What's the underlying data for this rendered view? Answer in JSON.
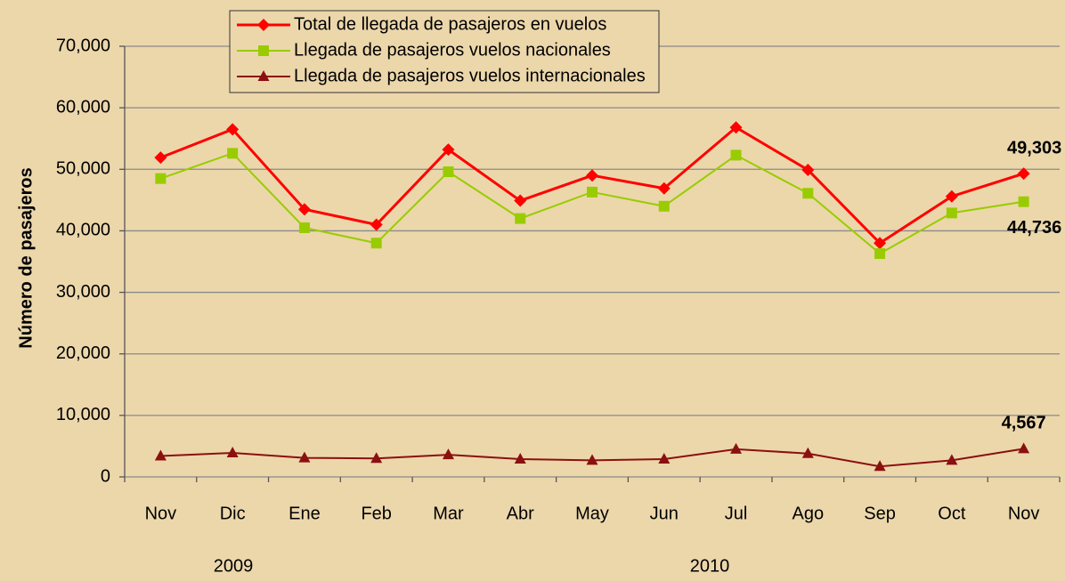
{
  "chart_data": {
    "type": "line",
    "y_label": "Número de pasajeros",
    "categories": [
      "Nov",
      "Dic",
      "Ene",
      "Feb",
      "Mar",
      "Abr",
      "May",
      "Jun",
      "Jul",
      "Ago",
      "Sep",
      "Oct",
      "Nov"
    ],
    "annotations": [
      "2009",
      "2010"
    ],
    "ylim": [
      0,
      70000
    ],
    "yticks": [
      0,
      {
        "value": 10000,
        "label": "10,000"
      },
      {
        "value": 20000,
        "label": "20,000"
      },
      {
        "value": 30000,
        "label": "30,000"
      },
      {
        "value": 40000,
        "label": "40,000"
      },
      {
        "value": 50000,
        "label": "50,000"
      },
      {
        "value": 60000,
        "label": "60,000"
      },
      {
        "value": 70000,
        "label": "70,000"
      }
    ],
    "grid": true,
    "legend": "top",
    "series": [
      {
        "name": "Total de llegada de pasajeros en vuelos",
        "color": "#ff0000",
        "marker": "diamond",
        "values": [
          51900,
          56500,
          43500,
          41000,
          53200,
          44900,
          49000,
          46900,
          56800,
          49900,
          38000,
          45600,
          49303
        ],
        "value_labels": [
          null,
          null,
          null,
          null,
          null,
          null,
          null,
          null,
          null,
          null,
          null,
          null,
          "49,303"
        ]
      },
      {
        "name": "Llegada de pasajeros vuelos nacionales",
        "color": "#99cc00",
        "marker": "square",
        "values": [
          48500,
          52600,
          40500,
          38000,
          49600,
          42000,
          46300,
          44000,
          52300,
          46100,
          36300,
          42900,
          44736
        ],
        "value_labels": [
          null,
          null,
          null,
          null,
          null,
          null,
          null,
          null,
          null,
          null,
          null,
          null,
          "44,736"
        ]
      },
      {
        "name": "Llegada de pasajeros vuelos internacionales",
        "color": "#8b1010",
        "marker": "triangle",
        "values": [
          3400,
          3900,
          3100,
          3000,
          3600,
          2900,
          2700,
          2900,
          4500,
          3800,
          1700,
          2700,
          4567
        ],
        "value_labels": [
          null,
          null,
          null,
          null,
          null,
          null,
          null,
          null,
          null,
          null,
          null,
          null,
          "4,567"
        ]
      }
    ]
  }
}
